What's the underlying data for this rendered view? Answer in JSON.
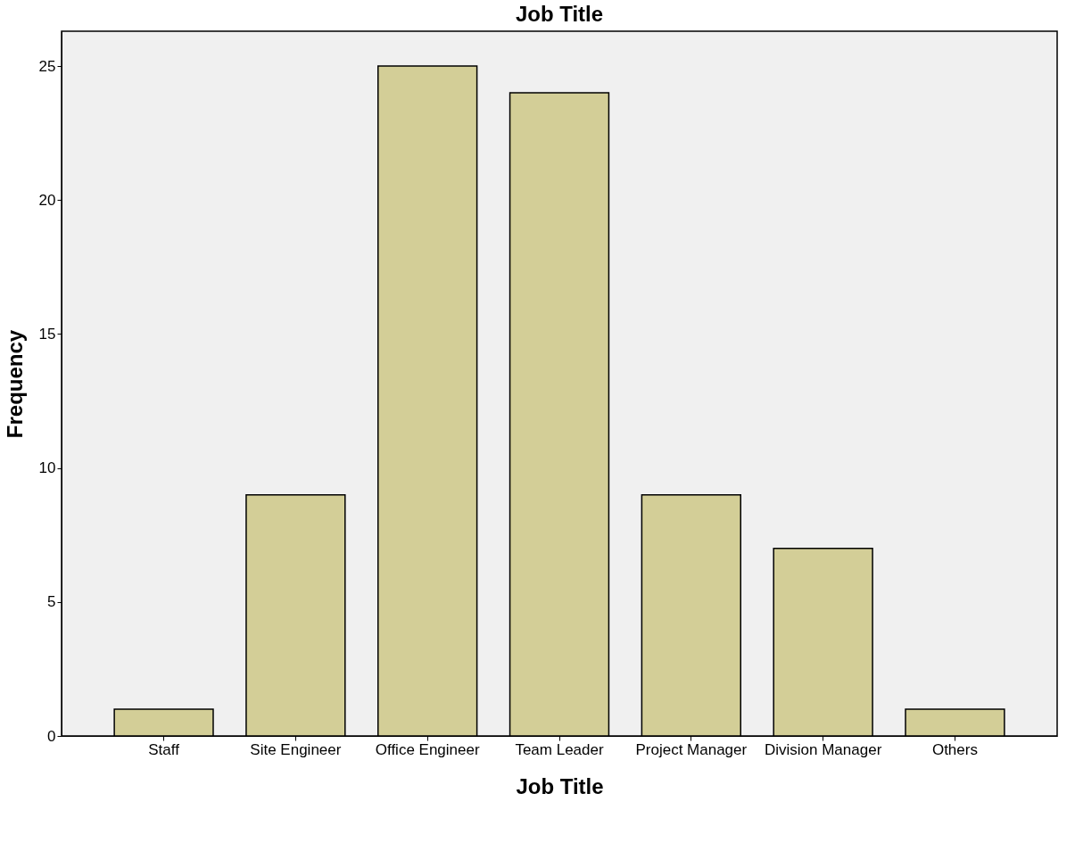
{
  "chart_data": {
    "type": "bar",
    "title": "Job Title",
    "xlabel": "Job Title",
    "ylabel": "Frequency",
    "categories": [
      "Staff",
      "Site Engineer",
      "Office Engineer",
      "Team Leader",
      "Project Manager",
      "Division Manager",
      "Others"
    ],
    "values": [
      1,
      9,
      25,
      24,
      9,
      7,
      1
    ],
    "color": "#d3ce97",
    "ylim": [
      0,
      26.3
    ],
    "yticks": [
      0,
      5,
      10,
      15,
      20,
      25
    ],
    "grid": false
  }
}
